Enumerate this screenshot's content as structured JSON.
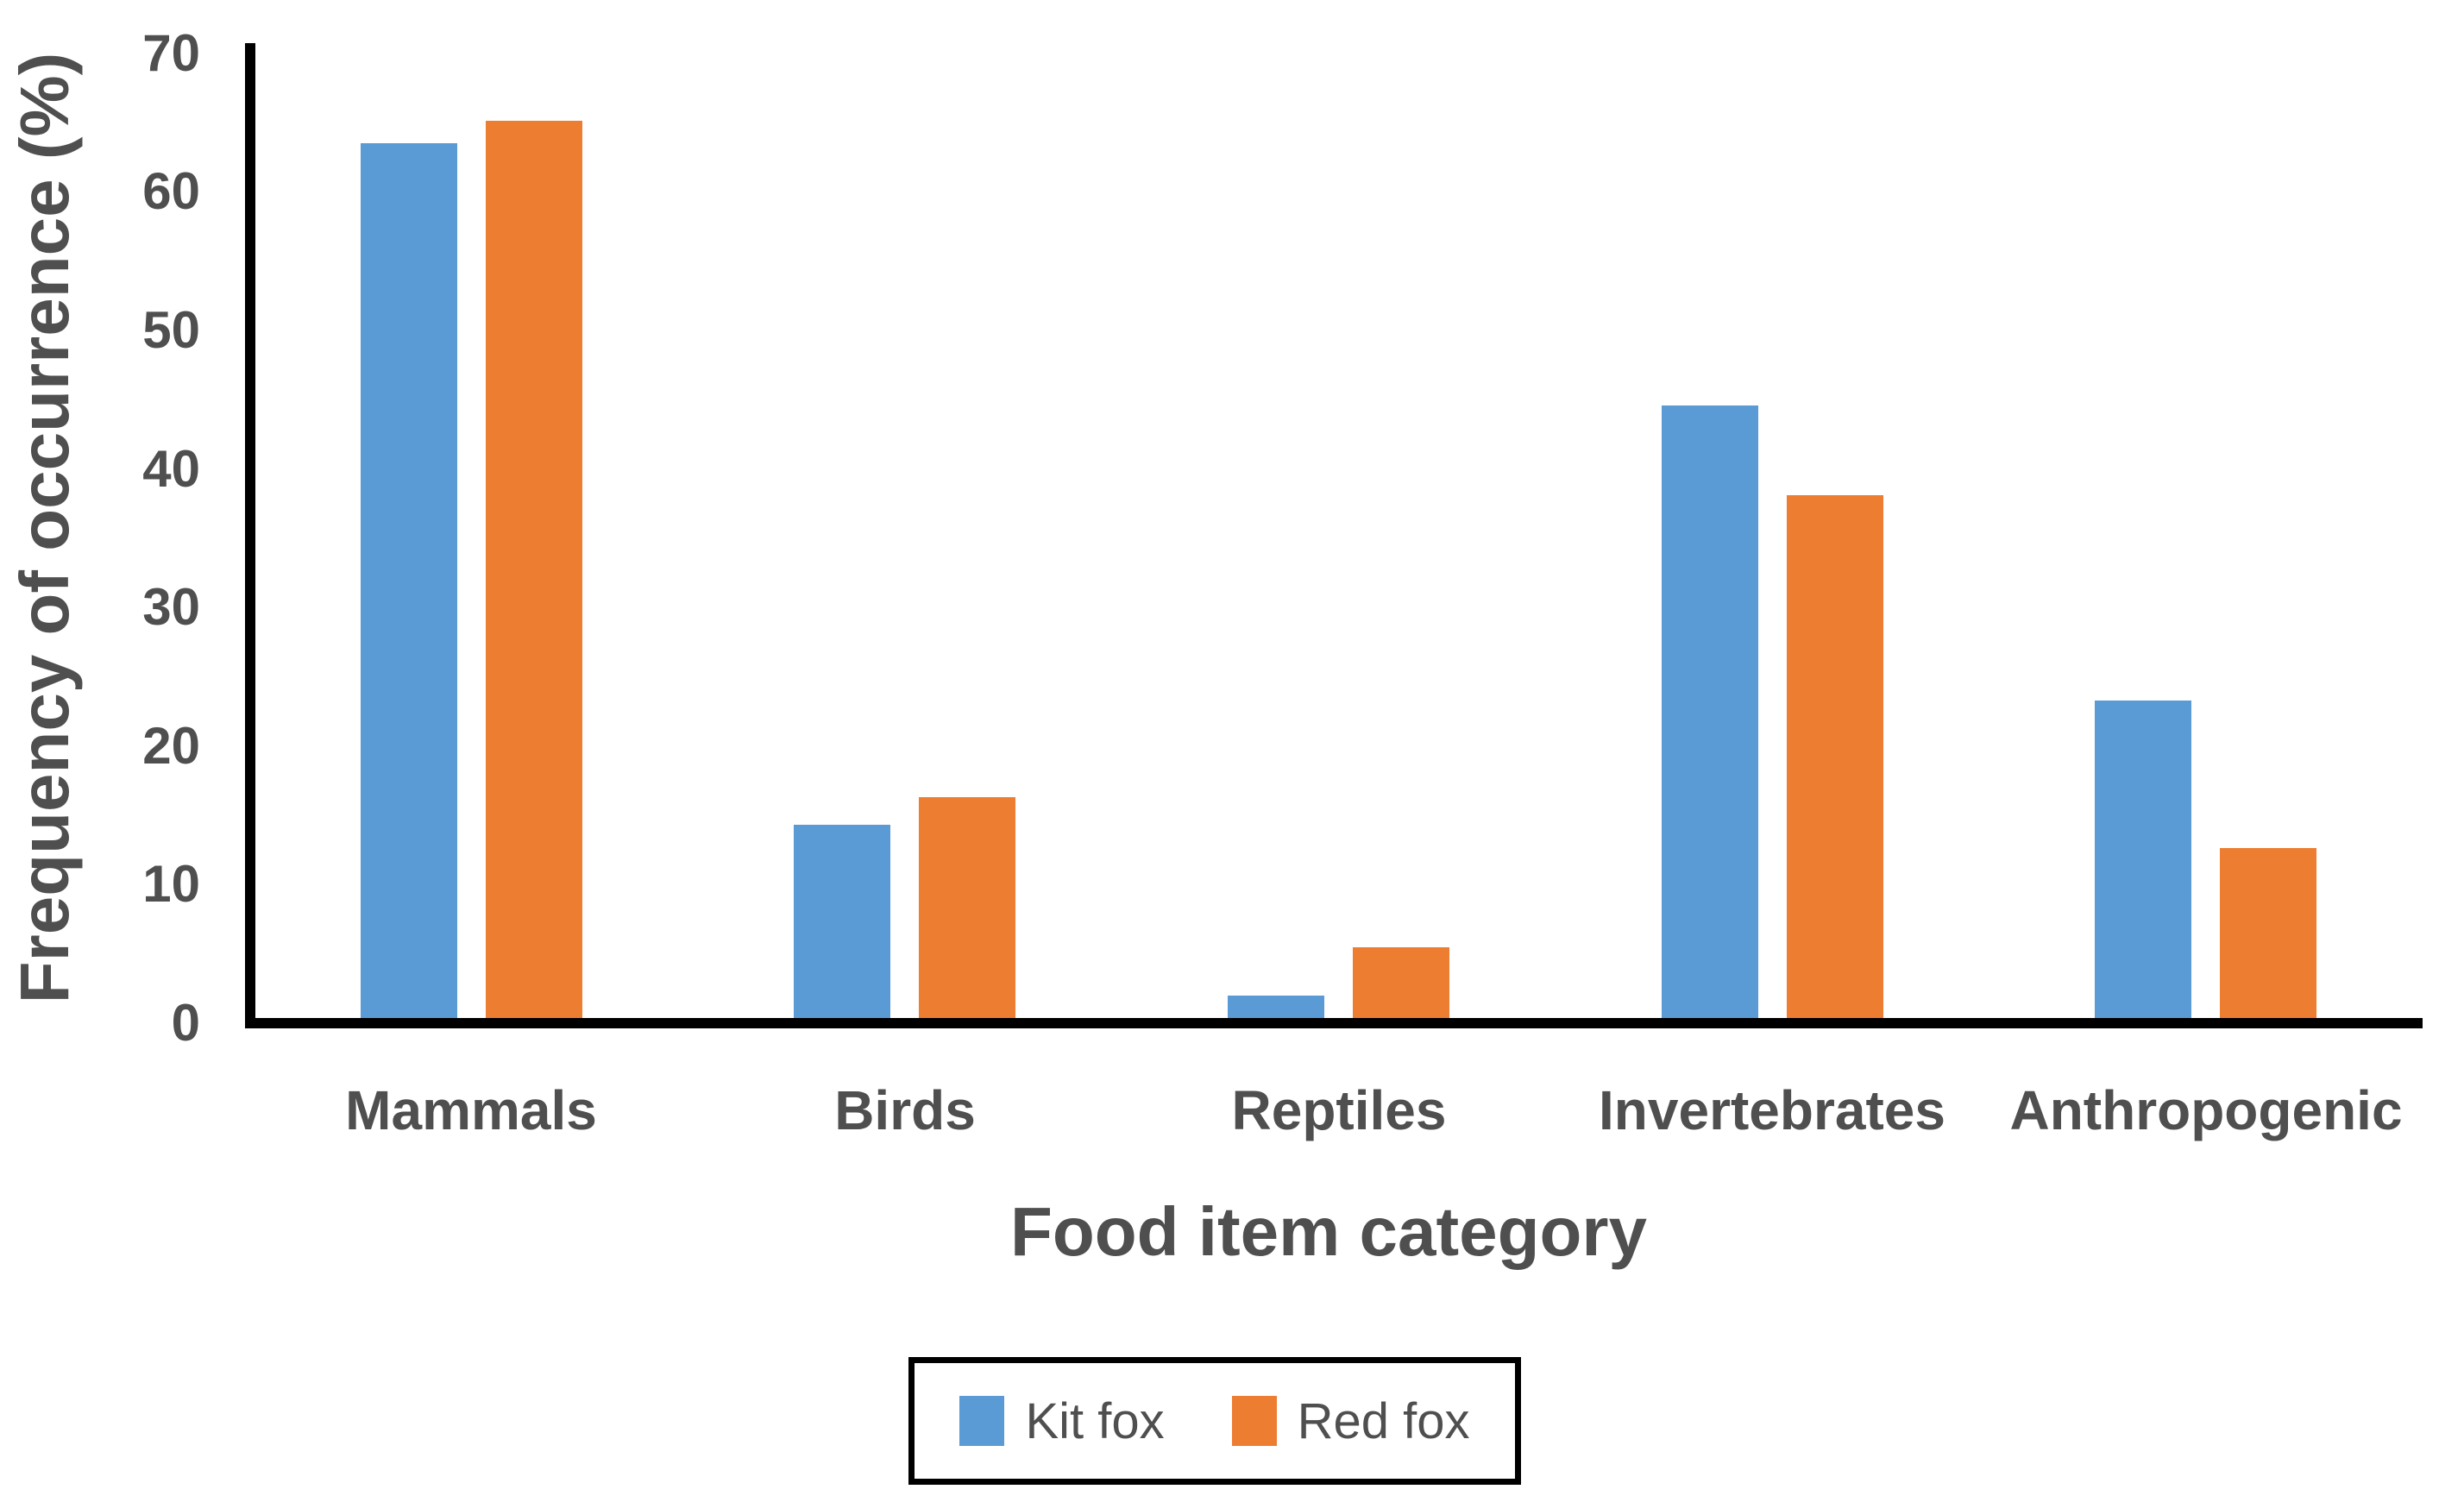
{
  "chart_data": {
    "type": "bar",
    "grouped": true,
    "title": "",
    "xlabel": "Food item category",
    "ylabel": "Frequency of occurrence (%)",
    "categories": [
      "Mammals",
      "Birds",
      "Reptiles",
      "Invertebrates",
      "Anthropogenic"
    ],
    "series": [
      {
        "name": "Kit fox",
        "color": "#5B9BD5",
        "values": [
          63.4,
          14.0,
          1.6,
          44.4,
          23.0
        ]
      },
      {
        "name": "Red fox",
        "color": "#ED7D31",
        "values": [
          65.0,
          16.0,
          5.1,
          37.9,
          12.3
        ]
      }
    ],
    "ylim": [
      0,
      70
    ],
    "yticks": [
      0,
      10,
      20,
      30,
      40,
      50,
      60,
      70
    ],
    "grid": false,
    "legend_position": "bottom",
    "axis_color": "#000000",
    "text_color": "#4f4f4f",
    "background_color": "#ffffff"
  }
}
